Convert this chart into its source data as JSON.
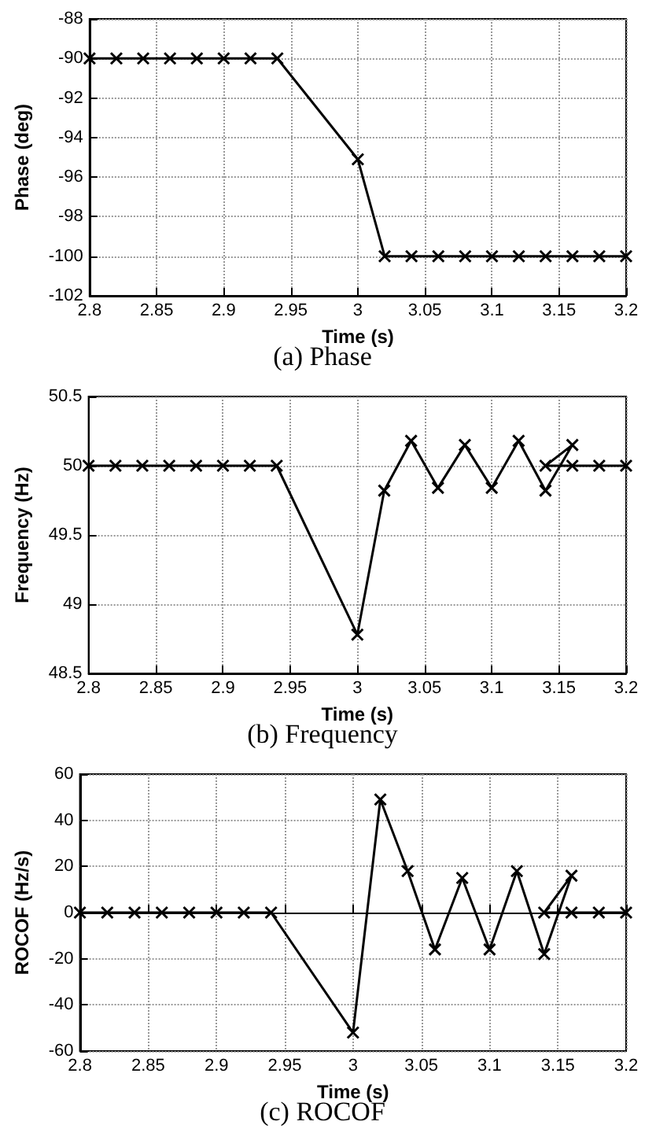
{
  "chart_data": [
    {
      "type": "line",
      "title": "(a) Phase",
      "xlabel": "Time (s)",
      "ylabel": "Phase (deg)",
      "color": "#000000",
      "marker": "cross",
      "line_style": "solid",
      "grid": true,
      "x": [
        2.8,
        2.82,
        2.84,
        2.86,
        2.88,
        2.9,
        2.92,
        2.94,
        3.0,
        3.02,
        3.04,
        3.06,
        3.08,
        3.1,
        3.12,
        3.14,
        3.16,
        3.18,
        3.2
      ],
      "values": [
        -90,
        -90,
        -90,
        -90,
        -90,
        -90,
        -90,
        -90,
        -95.1,
        -100,
        -100,
        -100,
        -100,
        -100,
        -100,
        -100,
        -100,
        -100,
        -100
      ],
      "xlim": [
        2.8,
        3.2
      ],
      "xticks": [
        2.8,
        2.85,
        2.9,
        2.95,
        3,
        3.05,
        3.1,
        3.15,
        3.2
      ],
      "ylim": [
        -102,
        -88
      ],
      "yticks": [
        -102,
        -100,
        -98,
        -96,
        -94,
        -92,
        -90,
        -88
      ]
    },
    {
      "type": "line",
      "title": "(b) Frequency",
      "xlabel": "Time (s)",
      "ylabel": "Frequency (Hz)",
      "color": "#000000",
      "marker": "cross",
      "line_style": "solid",
      "grid": true,
      "x": [
        2.8,
        2.82,
        2.84,
        2.86,
        2.88,
        2.9,
        2.92,
        2.94,
        3.0,
        3.02,
        3.04,
        3.06,
        3.08,
        3.1,
        3.12,
        3.14,
        3.16,
        3.14,
        3.16,
        3.18,
        3.2
      ],
      "values": [
        50,
        50,
        50,
        50,
        50,
        50,
        50,
        50,
        48.78,
        49.82,
        50.18,
        49.84,
        50.15,
        49.84,
        50.18,
        49.82,
        50.15,
        50,
        50,
        50,
        50
      ],
      "xlim": [
        2.8,
        3.2
      ],
      "xticks": [
        2.8,
        2.85,
        2.9,
        2.95,
        3,
        3.05,
        3.1,
        3.15,
        3.2
      ],
      "ylim": [
        48.5,
        50.5
      ],
      "yticks": [
        48.5,
        49,
        49.5,
        50,
        50.5
      ]
    },
    {
      "type": "line",
      "title": "(c) ROCOF",
      "xlabel": "Time (s)",
      "ylabel": "ROCOF (Hz/s)",
      "color": "#000000",
      "marker": "cross",
      "line_style": "solid",
      "grid": true,
      "x": [
        2.8,
        2.82,
        2.84,
        2.86,
        2.88,
        2.9,
        2.92,
        2.94,
        3.0,
        3.02,
        3.04,
        3.06,
        3.08,
        3.1,
        3.12,
        3.14,
        3.16,
        3.14,
        3.16,
        3.18,
        3.2
      ],
      "values": [
        0,
        0,
        0,
        0,
        0,
        0,
        0,
        0,
        -52,
        49,
        18,
        -16,
        15,
        -16,
        18,
        -18,
        16,
        0,
        0,
        0,
        0
      ],
      "xlim": [
        2.8,
        3.2
      ],
      "xticks": [
        2.8,
        2.85,
        2.9,
        2.95,
        3,
        3.05,
        3.1,
        3.15,
        3.2
      ],
      "ylim": [
        -60,
        60
      ],
      "yticks": [
        -60,
        -40,
        -20,
        0,
        20,
        40,
        60
      ]
    }
  ]
}
